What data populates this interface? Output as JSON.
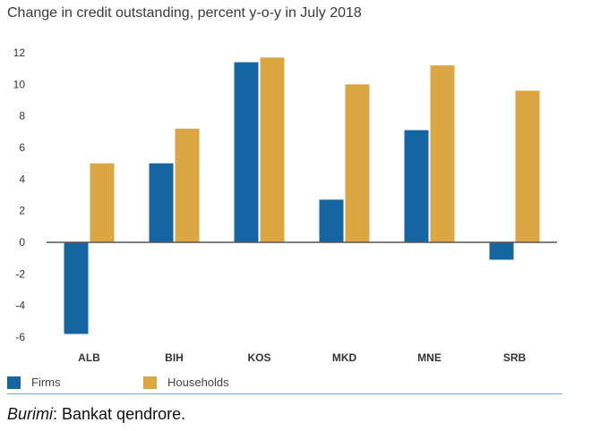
{
  "title": "Change in credit outstanding, percent y-o-y in July 2018",
  "colors": {
    "firms": "#1565a3",
    "households": "#dca743",
    "axis": "#555555",
    "rule": "#6fa7d6"
  },
  "legend": {
    "firms": "Firms",
    "households": "Households"
  },
  "source": {
    "label": "Burimi",
    "text": ": Bankat qendrore."
  },
  "chart_data": {
    "type": "bar",
    "title": "Change in credit outstanding, percent y-o-y in July 2018",
    "categories": [
      "ALB",
      "BIH",
      "KOS",
      "MKD",
      "MNE",
      "SRB"
    ],
    "series": [
      {
        "name": "Firms",
        "values": [
          -5.8,
          5.0,
          11.4,
          2.7,
          7.1,
          -1.1
        ]
      },
      {
        "name": "Households",
        "values": [
          5.0,
          7.2,
          11.7,
          10.0,
          11.2,
          9.6
        ]
      }
    ],
    "yticks": [
      "12",
      "10",
      "8",
      "6",
      "4",
      "2",
      "0",
      "-2",
      "-4",
      "-6"
    ],
    "ylim": [
      -6,
      12
    ],
    "grid": false,
    "legend_position": "bottom-left"
  }
}
